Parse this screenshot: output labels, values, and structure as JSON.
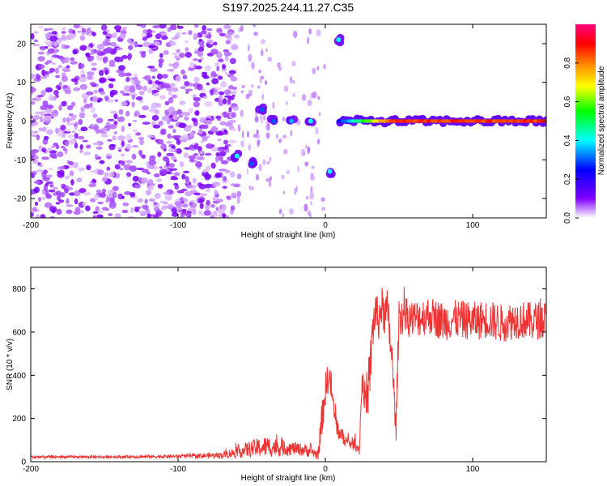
{
  "figure_title": "S197.2025.244.11.27.C35",
  "chart_data": [
    {
      "type": "heatmap",
      "title": "S197.2025.244.11.27.C35",
      "xlabel": "Height of straight line (km)",
      "ylabel": "Frequency (Hz)",
      "xlim": [
        -200,
        150
      ],
      "ylim": [
        -25,
        25
      ],
      "x_ticks": [
        -200,
        -100,
        0,
        100
      ],
      "y_ticks": [
        -20,
        -10,
        0,
        10,
        20
      ],
      "colorbar": {
        "label": "Normalized spectral amplitude",
        "range": [
          0,
          1
        ],
        "ticks": [
          "0.0",
          "0.2",
          "0.4",
          "0.6",
          "0.8"
        ],
        "tick_values": [
          0,
          0.2,
          0.4,
          0.6,
          0.8
        ],
        "colormap": [
          "#ffffff",
          "#8000ff",
          "#0000ff",
          "#00ffff",
          "#00ff00",
          "#ffff00",
          "#ff8000",
          "#ff0000",
          "#ff0080"
        ]
      },
      "features": [
        {
          "name": "noise-field",
          "x_range": [
            -200,
            -60
          ],
          "f_range": [
            -25,
            25
          ],
          "amplitude": 0.15
        },
        {
          "name": "fragment",
          "x": -60,
          "f": -9,
          "amplitude": 0.4
        },
        {
          "name": "fragment",
          "x": -50,
          "f": -11,
          "amplitude": 0.3
        },
        {
          "name": "fragment",
          "x": -43,
          "f": 3,
          "amplitude": 0.3
        },
        {
          "name": "fragment",
          "x": -35,
          "f": 0,
          "amplitude": 0.3
        },
        {
          "name": "fragment",
          "x": -23,
          "f": 0,
          "amplitude": 0.35
        },
        {
          "name": "fragment",
          "x": -10,
          "f": 0,
          "amplitude": 0.4
        },
        {
          "name": "fragment",
          "x": 3,
          "f": -13,
          "amplitude": 0.4
        },
        {
          "name": "fragment",
          "x": 9,
          "f": 21,
          "amplitude": 0.4
        },
        {
          "name": "steady-line",
          "x_range": [
            10,
            150
          ],
          "f": 0,
          "amplitude_start": 0.3,
          "amplitude_end": 0.9
        }
      ]
    },
    {
      "type": "line",
      "title": "",
      "xlabel": "Height of straight line (km)",
      "ylabel": "SNR (10 * v/v)",
      "xlim": [
        -200,
        150
      ],
      "ylim": [
        0,
        900
      ],
      "x_ticks": [
        -200,
        -100,
        0,
        100
      ],
      "y_ticks": [
        0,
        200,
        400,
        600,
        800
      ],
      "line_color": "#ee3333",
      "series": [
        {
          "name": "SNR",
          "x": [
            -200,
            -150,
            -100,
            -70,
            -50,
            -40,
            -30,
            -20,
            -10,
            -5,
            -3,
            0,
            2,
            4,
            6,
            8,
            10,
            15,
            20,
            23,
            25,
            28,
            30,
            32,
            34,
            36,
            38,
            40,
            42,
            45,
            48,
            50,
            60,
            70,
            80,
            90,
            100,
            110,
            120,
            130,
            140,
            150
          ],
          "y": [
            22,
            22,
            25,
            30,
            60,
            70,
            65,
            60,
            50,
            30,
            150,
            330,
            400,
            350,
            220,
            160,
            130,
            90,
            80,
            60,
            380,
            250,
            380,
            600,
            700,
            650,
            720,
            680,
            700,
            500,
            150,
            680,
            660,
            680,
            650,
            660,
            650,
            660,
            640,
            660,
            650,
            660
          ],
          "noise_amplitude": [
            6,
            6,
            8,
            15,
            40,
            50,
            40,
            30,
            30,
            20,
            80,
            80,
            80,
            70,
            60,
            50,
            40,
            30,
            30,
            30,
            60,
            80,
            120,
            120,
            100,
            100,
            100,
            100,
            100,
            100,
            60,
            90,
            90,
            90,
            90,
            90,
            90,
            90,
            90,
            90,
            90,
            90
          ]
        }
      ]
    }
  ]
}
